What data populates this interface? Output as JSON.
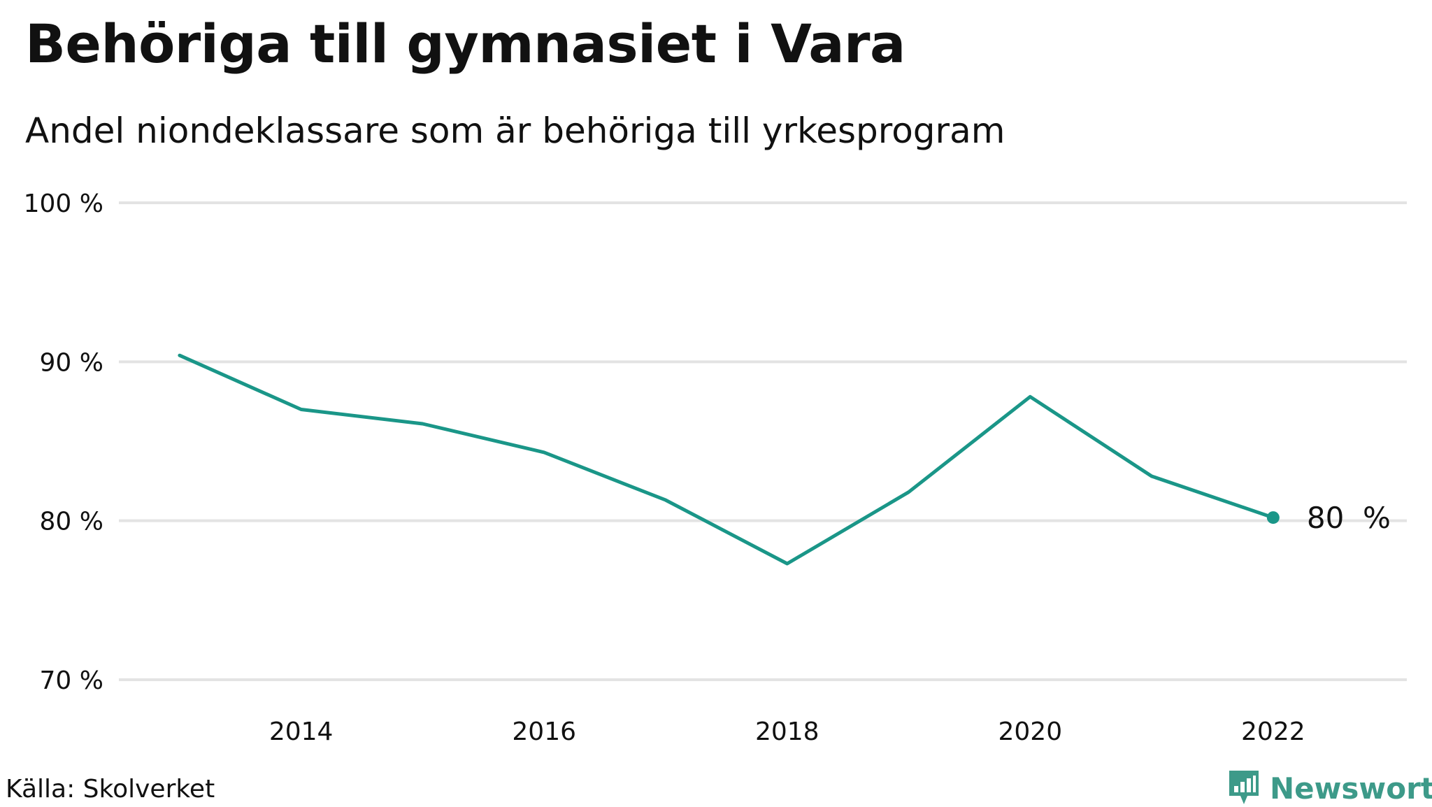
{
  "title": "Behöriga till gymnasiet i Vara",
  "subtitle": "Andel niondeklassare som är behöriga till yrkesprogram",
  "source": "Källa: Skolverket",
  "brand": {
    "name": "Newsworthy",
    "logo_icon": "bar-chart-speech-bubble-icon",
    "color": "#3d9a89"
  },
  "chart_data": {
    "type": "line",
    "title": "Behöriga till gymnasiet i Vara",
    "subtitle": "Andel niondeklassare som är behöriga till yrkesprogram",
    "x": [
      2013,
      2014,
      2015,
      2016,
      2017,
      2018,
      2019,
      2020,
      2021,
      2022
    ],
    "series": [
      {
        "values": [
          90.4,
          87.0,
          86.1,
          84.3,
          81.3,
          77.3,
          81.8,
          87.8,
          82.8,
          80.2
        ],
        "color": "#1a9688"
      }
    ],
    "xticks": [
      2014,
      2016,
      2018,
      2020,
      2022
    ],
    "xtick_labels": [
      "2014",
      "2016",
      "2018",
      "2020",
      "2022"
    ],
    "yticks": [
      70,
      80,
      90,
      100
    ],
    "ytick_labels": [
      "70 %",
      "80 %",
      "90 %",
      "100 %"
    ],
    "ylim": [
      70,
      100
    ],
    "xlim": [
      2012.5,
      2023.1
    ],
    "end_label": "80  %",
    "grid": "horizontal",
    "gridline_color": "#e3e3e3"
  }
}
